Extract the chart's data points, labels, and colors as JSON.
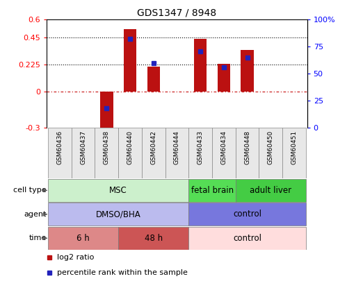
{
  "title": "GDS1347 / 8948",
  "samples": [
    "GSM60436",
    "GSM60437",
    "GSM60438",
    "GSM60440",
    "GSM60442",
    "GSM60444",
    "GSM60433",
    "GSM60434",
    "GSM60448",
    "GSM60450",
    "GSM60451"
  ],
  "log2_ratio": [
    0,
    0,
    -0.34,
    0.52,
    0.21,
    0,
    0.44,
    0.23,
    0.35,
    0,
    0
  ],
  "percentile_rank_pct": [
    null,
    null,
    18,
    82,
    60,
    null,
    71,
    56,
    65,
    null,
    null
  ],
  "ylim_left": [
    -0.3,
    0.6
  ],
  "ylim_right": [
    0,
    100
  ],
  "yticks_left": [
    -0.3,
    0,
    0.225,
    0.45,
    0.6
  ],
  "yticks_left_labels": [
    "-0.3",
    "0",
    "0.225",
    "0.45",
    "0.6"
  ],
  "yticks_right": [
    0,
    25,
    50,
    75,
    100
  ],
  "yticks_right_labels": [
    "0",
    "25",
    "50",
    "75",
    "100%"
  ],
  "hlines": [
    0.45,
    0.225
  ],
  "bar_color": "#bb1111",
  "dot_color": "#2222bb",
  "zero_line_color": "#cc2222",
  "cell_type_groups": [
    {
      "label": "MSC",
      "start": 0,
      "end": 6,
      "color": "#ccf0cc"
    },
    {
      "label": "fetal brain",
      "start": 6,
      "end": 8,
      "color": "#55dd55"
    },
    {
      "label": "adult liver",
      "start": 8,
      "end": 11,
      "color": "#44cc44"
    }
  ],
  "agent_groups": [
    {
      "label": "DMSO/BHA",
      "start": 0,
      "end": 6,
      "color": "#bbbbee"
    },
    {
      "label": "control",
      "start": 6,
      "end": 11,
      "color": "#7777dd"
    }
  ],
  "time_groups": [
    {
      "label": "6 h",
      "start": 0,
      "end": 3,
      "color": "#dd8888"
    },
    {
      "label": "48 h",
      "start": 3,
      "end": 6,
      "color": "#cc5555"
    },
    {
      "label": "control",
      "start": 6,
      "end": 11,
      "color": "#ffdddd"
    }
  ],
  "row_labels": [
    "cell type",
    "agent",
    "time"
  ],
  "legend_items": [
    {
      "label": "log2 ratio",
      "color": "#bb1111"
    },
    {
      "label": "percentile rank within the sample",
      "color": "#2222bb"
    }
  ],
  "bar_width": 0.55,
  "n": 11
}
